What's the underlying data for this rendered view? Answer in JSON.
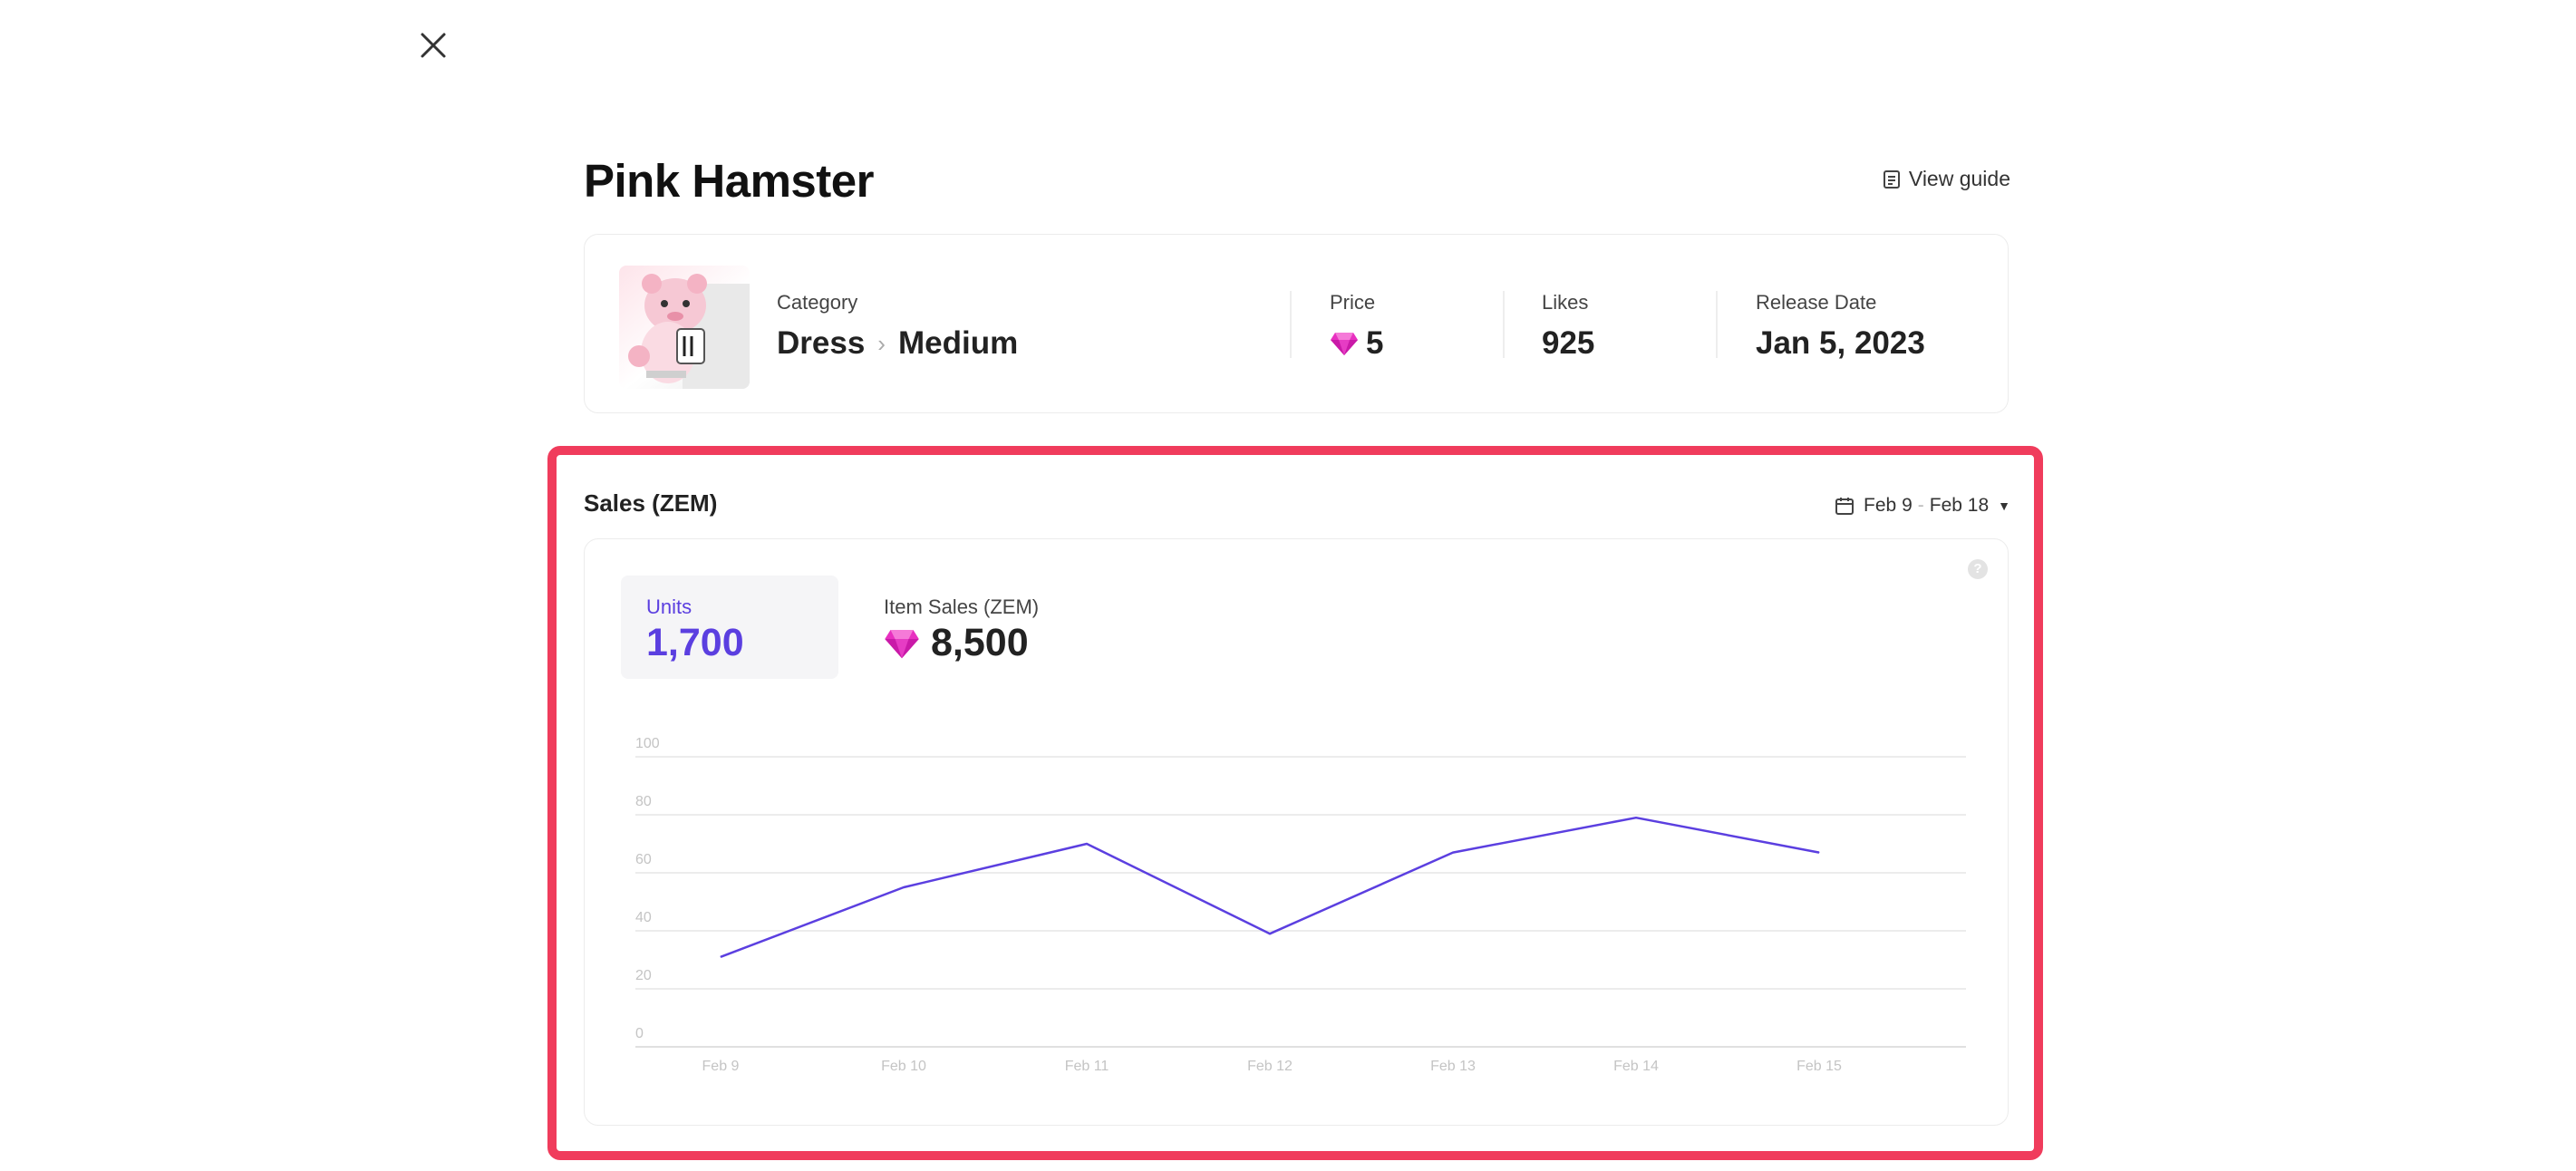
{
  "page": {
    "title": "Pink Hamster",
    "view_guide": "View guide"
  },
  "item": {
    "category_label": "Category",
    "category": "Dress",
    "subcategory": "Medium",
    "price_label": "Price",
    "price": "5",
    "likes_label": "Likes",
    "likes": "925",
    "release_label": "Release Date",
    "release": "Jan 5, 2023"
  },
  "sales": {
    "title": "Sales (ZEM)",
    "date_start": "Feb 9",
    "date_sep": "-",
    "date_end": "Feb 18",
    "help": "?",
    "units_label": "Units",
    "units_value": "1,700",
    "item_sales_label": "Item Sales (ZEM)",
    "item_sales_value": "8,500"
  },
  "colors": {
    "accent": "#5b3fe0",
    "gem": "#e830c0",
    "highlight": "#f03c5c"
  },
  "icons": [
    "close-icon",
    "document-icon",
    "gem-icon",
    "calendar-icon",
    "caret-down-icon",
    "help-icon",
    "chevron-right-icon"
  ],
  "chart_data": {
    "type": "line",
    "x": [
      "Feb 9",
      "Feb 10",
      "Feb 11",
      "Feb 12",
      "Feb 13",
      "Feb 14",
      "Feb 15"
    ],
    "series": [
      {
        "values": [
          31,
          55,
          70,
          39,
          67,
          79,
          67
        ]
      }
    ],
    "ylim": [
      0,
      100
    ],
    "yticks": [
      0,
      20,
      40,
      60,
      80,
      100
    ],
    "grid": true
  }
}
